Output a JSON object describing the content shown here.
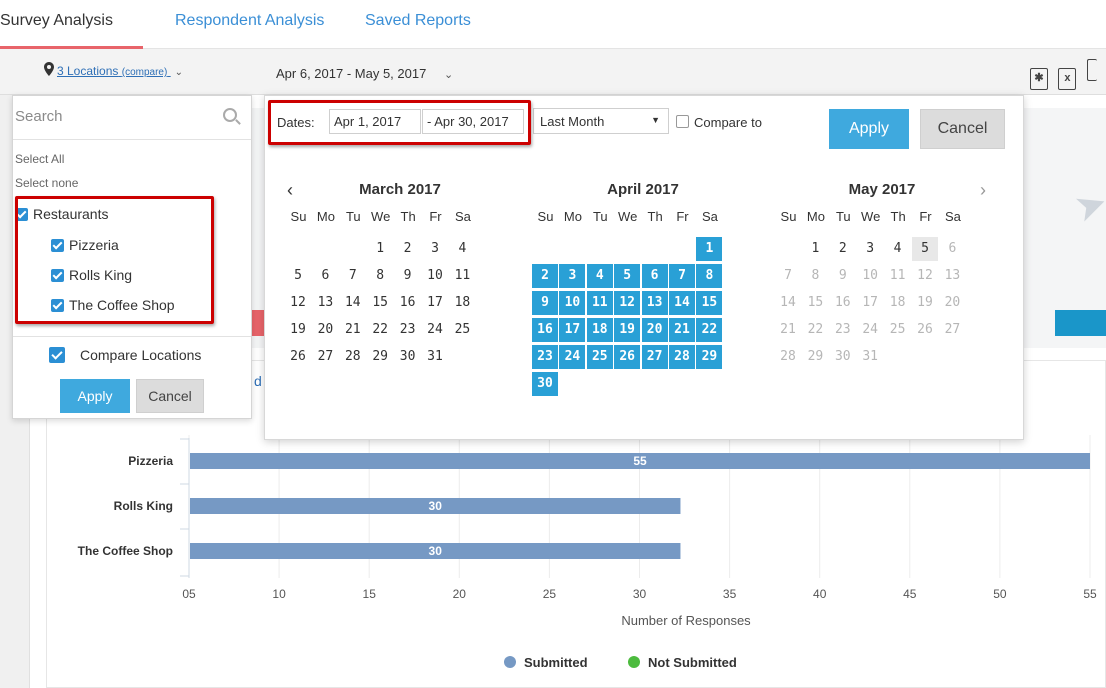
{
  "tabs": [
    {
      "label": "Survey Analysis",
      "active": true
    },
    {
      "label": "Respondent Analysis",
      "active": false
    },
    {
      "label": "Saved Reports",
      "active": false
    }
  ],
  "toolbar": {
    "locations_label": "3 Locations",
    "locations_compare": "(compare)",
    "date_range": "Apr 6, 2017 - May 5, 2017",
    "export_icons": [
      "pdf-icon",
      "excel-icon",
      "print-icon"
    ]
  },
  "location_panel": {
    "search_placeholder": "Search",
    "select_all": "Select All",
    "select_none": "Select none",
    "group": {
      "label": "Restaurants",
      "checked": true
    },
    "items": [
      {
        "label": "Pizzeria",
        "checked": true
      },
      {
        "label": "Rolls King",
        "checked": true
      },
      {
        "label": "The Coffee Shop",
        "checked": true
      }
    ],
    "compare_label": "Compare Locations",
    "compare_checked": true,
    "apply": "Apply",
    "cancel": "Cancel"
  },
  "stub_text": "d",
  "date_panel": {
    "dates_label": "Dates:",
    "start": "Apr 1, 2017",
    "end": "- Apr 30, 2017",
    "preset": "Last Month",
    "compare_label": "Compare to",
    "apply": "Apply",
    "cancel": "Cancel",
    "dow": [
      "Su",
      "Mo",
      "Tu",
      "We",
      "Th",
      "Fr",
      "Sa"
    ],
    "months": [
      {
        "title": "March 2017",
        "start_dow": 3,
        "days": 31,
        "selected": [],
        "muted": false
      },
      {
        "title": "April 2017",
        "start_dow": 6,
        "days": 30,
        "selected_range": [
          1,
          30
        ],
        "muted": false
      },
      {
        "title": "May 2017",
        "start_dow": 1,
        "days": 31,
        "selected": [],
        "muted_after": 5,
        "today": 5,
        "show_until": 31
      }
    ]
  },
  "colors": {
    "accent": "#29a0d6",
    "bar": "#7699c4",
    "submitted": "#7699c4",
    "not_submitted": "#4cbb3e",
    "highlight": "#cc0000"
  },
  "chart_data": {
    "type": "bar",
    "orientation": "horizontal",
    "categories": [
      "Pizzeria",
      "Rolls King",
      "The Coffee Shop"
    ],
    "series": [
      {
        "name": "Submitted",
        "values": [
          55,
          30,
          30
        ]
      },
      {
        "name": "Not Submitted",
        "values": [
          0,
          0,
          0
        ]
      }
    ],
    "data_labels": [
      "55",
      "30",
      "30"
    ],
    "x_ticks": [
      "05",
      "10",
      "15",
      "20",
      "25",
      "30",
      "35",
      "40",
      "45",
      "50",
      "55"
    ],
    "xlabel": "Number of Responses",
    "xlim": [
      5,
      55
    ],
    "grid": true,
    "legend": "bottom-center"
  }
}
